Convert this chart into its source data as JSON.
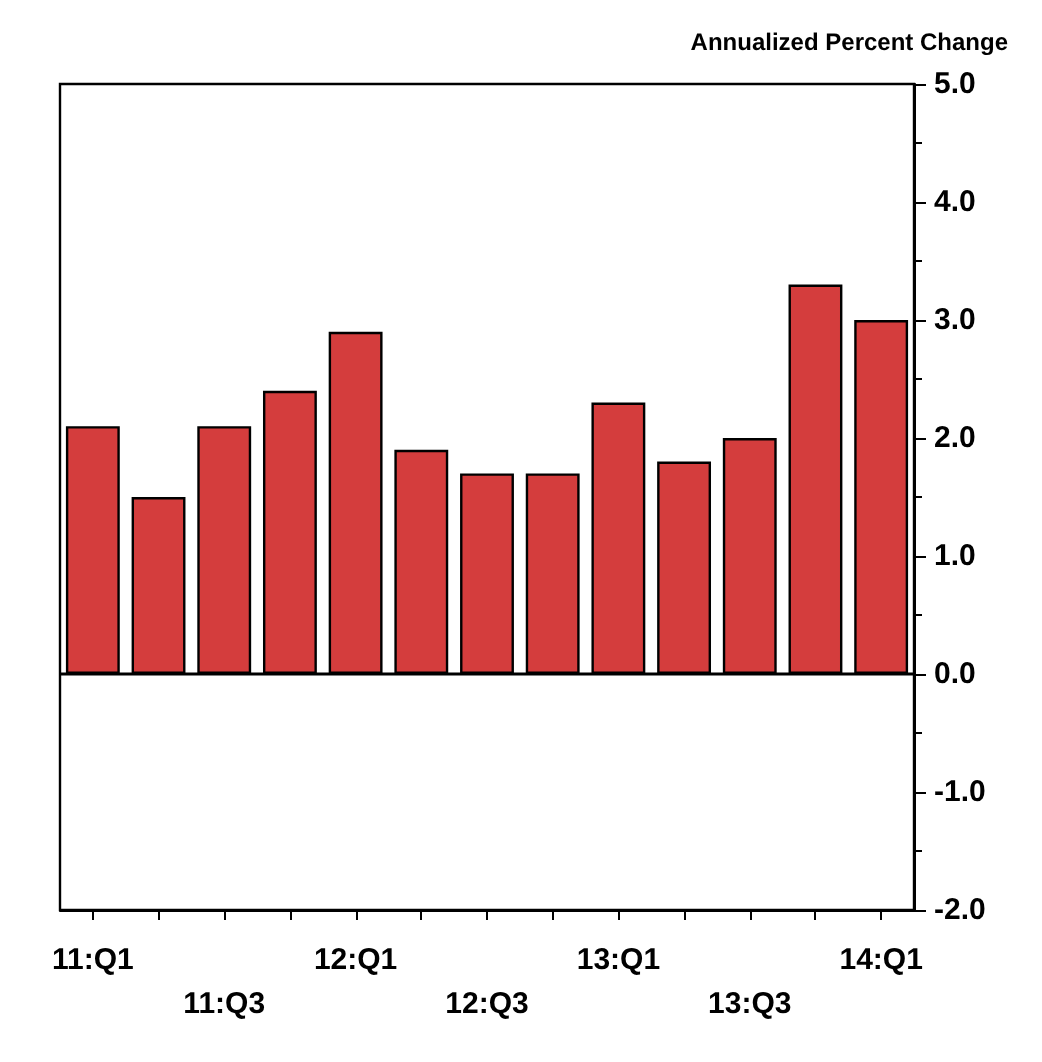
{
  "chart_data": {
    "type": "bar",
    "ylabel": "Annualized Percent Change",
    "categories": [
      "11:Q1",
      null,
      "11:Q3",
      null,
      "12:Q1",
      null,
      "12:Q3",
      null,
      "13:Q1",
      null,
      "13:Q3",
      null,
      "14:Q1"
    ],
    "values": [
      2.1,
      1.5,
      2.1,
      2.4,
      2.9,
      1.9,
      1.7,
      1.7,
      2.3,
      1.8,
      2.0,
      3.3,
      3.0
    ],
    "color": "#d43d3d",
    "ylim": [
      -2,
      5
    ],
    "yticks": [
      {
        "value": -2,
        "label": "-2.0"
      },
      {
        "value": -1,
        "label": "-1.0"
      },
      {
        "value": 0,
        "label": "0.0"
      },
      {
        "value": 1,
        "label": "1.0"
      },
      {
        "value": 2,
        "label": "2.0"
      },
      {
        "value": 3,
        "label": "3.0"
      },
      {
        "value": 4,
        "label": "4.0"
      },
      {
        "value": 5,
        "label": "5.0"
      }
    ],
    "ref_lines": [
      {
        "axis": "y",
        "value": 0
      }
    ],
    "grid": false
  }
}
